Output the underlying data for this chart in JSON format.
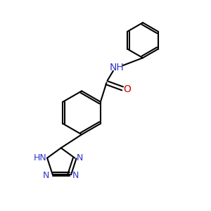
{
  "background_color": "#ffffff",
  "bond_color": "#000000",
  "bond_width": 1.5,
  "text_color_black": "#000000",
  "text_color_blue": "#3333cc",
  "text_color_red": "#cc0000",
  "font_size_label": 9,
  "fig_size": [
    3.0,
    3.0
  ],
  "dpi": 100,
  "xlim": [
    0,
    10
  ],
  "ylim": [
    0,
    10
  ]
}
